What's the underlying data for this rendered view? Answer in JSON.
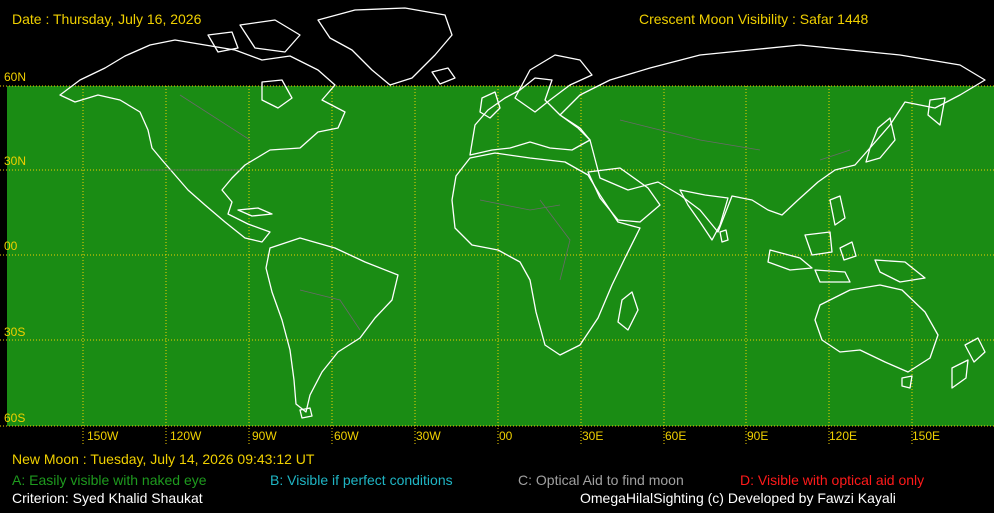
{
  "header": {
    "date": "Date : Thursday, July 16, 2026",
    "title": "Crescent Moon Visibility : Safar  1448"
  },
  "map": {
    "visibility_zone": "A",
    "colors": {
      "zone_a": "#1a8c14",
      "coast": "#ffffff",
      "borders": "#6a6a6a",
      "grid": "#f0d000",
      "background": "#000000"
    },
    "lat_labels": [
      "60N",
      "30N",
      "00",
      "30S",
      "60S"
    ],
    "lon_labels": [
      "150W",
      "120W",
      "90W",
      "60W",
      "30W",
      "00",
      "30E",
      "60E",
      "90E",
      "120E",
      "150E"
    ]
  },
  "footer": {
    "new_moon": "New Moon : Tuesday, July 14, 2026  09:43:12  UT",
    "legend": {
      "a": "A: Easily visible with naked eye",
      "b": "B: Visible if perfect conditions",
      "c": "C: Optical Aid to find moon",
      "d": "D: Visible with optical aid only"
    },
    "criterion": "Criterion: Syed Khalid Shaukat",
    "credit": "OmegaHilalSighting  (c)  Developed by Fawzi Kayali"
  }
}
